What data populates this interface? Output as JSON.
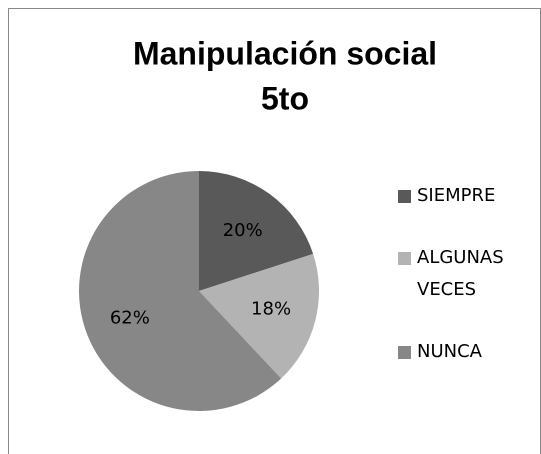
{
  "chart_data": {
    "type": "pie",
    "title": [
      "Manipulación social",
      "5to"
    ],
    "categories": [
      "SIEMPRE",
      "ALGUNAS VECES",
      "NUNCA"
    ],
    "values": [
      20,
      18,
      62
    ],
    "value_labels": [
      "20%",
      "18%",
      "62%"
    ],
    "colors": [
      "#595959",
      "#b3b3b3",
      "#878787"
    ],
    "legend": "right"
  }
}
